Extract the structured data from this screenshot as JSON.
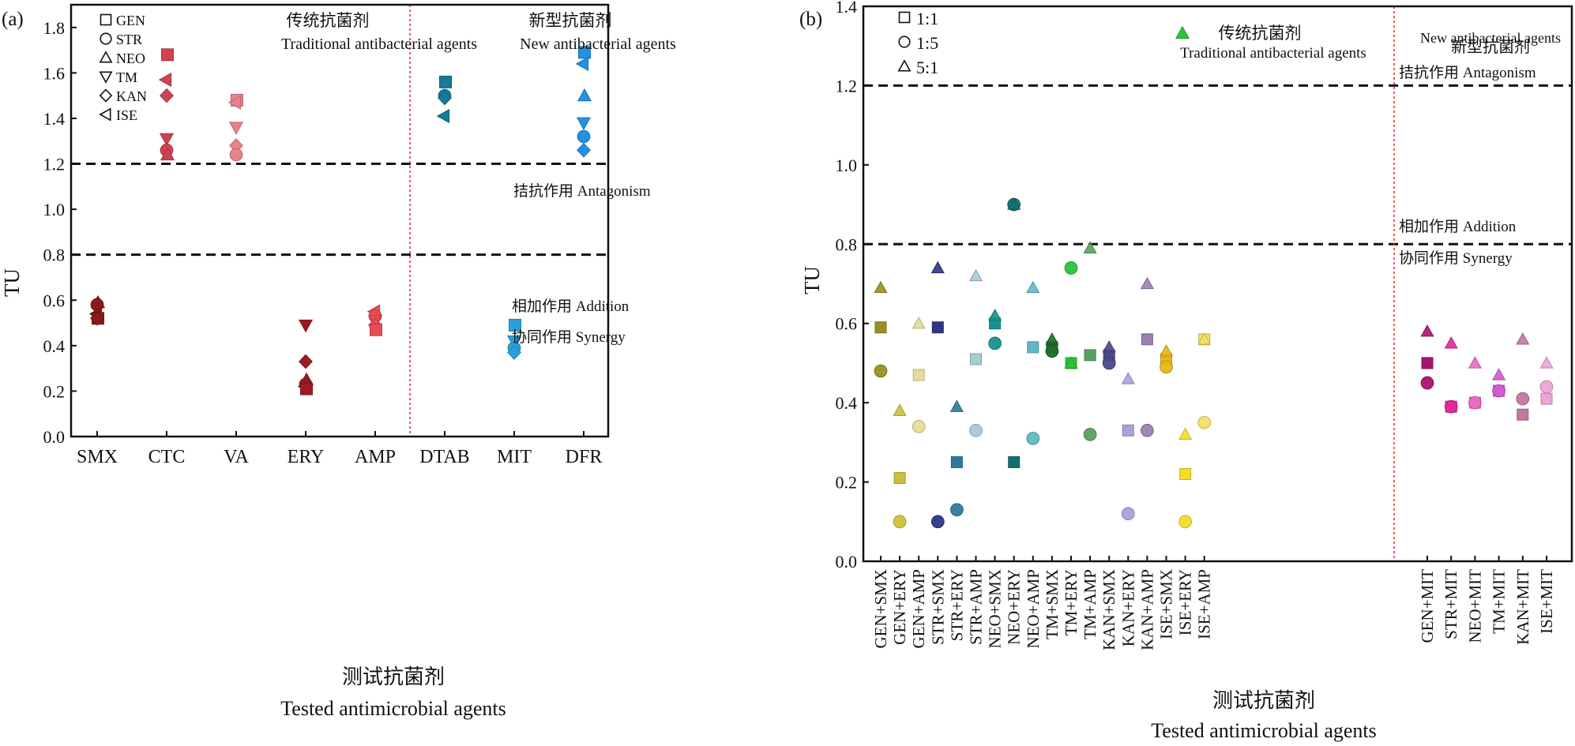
{
  "chart_data": [
    {
      "panel_label": "(a)",
      "type": "scatter",
      "ylabel": "TU",
      "xlabel_cn": "测试抗菌剂",
      "xlabel_en": "Tested antimicrobial agents",
      "ylim": [
        0,
        1.9
      ],
      "yticks": [
        "0.0",
        "0.2",
        "0.4",
        "0.6",
        "0.8",
        "1.0",
        "1.2",
        "1.4",
        "1.6",
        "1.8"
      ],
      "categories": [
        "SMX",
        "CTC",
        "VA",
        "ERY",
        "AMP",
        "DTAB",
        "MIT",
        "DFR"
      ],
      "legend": [
        {
          "marker": "square",
          "label": "GEN"
        },
        {
          "marker": "circle",
          "label": "STR"
        },
        {
          "marker": "triangle-up",
          "label": "NEO"
        },
        {
          "marker": "triangle-down",
          "label": "TM"
        },
        {
          "marker": "diamond",
          "label": "KAN"
        },
        {
          "marker": "triangle-left",
          "label": "ISE"
        }
      ],
      "group_labels": [
        {
          "cn": "传统抗菌剂",
          "en": "Traditional antibacterial agents"
        },
        {
          "cn": "新型抗菌剂",
          "en": "New antibacterial agents"
        }
      ],
      "hlines": [
        {
          "y": 1.2,
          "label": "拮抗作用 Antagonism"
        },
        {
          "y": 0.8,
          "label_above": "相加作用 Addition",
          "label_below": "协同作用 Synergy"
        }
      ],
      "divider_after_category": 4,
      "colors": {
        "SMX": "#8b1a1a",
        "CTC": "#cc4452",
        "VA": "#e8828c",
        "ERY": "#9b1b22",
        "AMP": "#e94b55",
        "DTAB": "#177a96",
        "MIT": "#2aa0d8",
        "DFR": "#2490e2"
      },
      "points": [
        {
          "category": "SMX",
          "marker": "triangle-up",
          "y": 0.59
        },
        {
          "category": "SMX",
          "marker": "circle",
          "y": 0.58
        },
        {
          "category": "SMX",
          "marker": "triangle-left",
          "y": 0.54
        },
        {
          "category": "SMX",
          "marker": "square",
          "y": 0.52
        },
        {
          "category": "SMX",
          "marker": "diamond",
          "y": 0.52
        },
        {
          "category": "CTC",
          "marker": "square",
          "y": 1.68
        },
        {
          "category": "CTC",
          "marker": "triangle-left",
          "y": 1.57
        },
        {
          "category": "CTC",
          "marker": "diamond",
          "y": 1.5
        },
        {
          "category": "CTC",
          "marker": "triangle-down",
          "y": 1.31
        },
        {
          "category": "CTC",
          "marker": "circle",
          "y": 1.26
        },
        {
          "category": "CTC",
          "marker": "triangle-up",
          "y": 1.24
        },
        {
          "category": "VA",
          "marker": "square",
          "y": 1.48
        },
        {
          "category": "VA",
          "marker": "triangle-left",
          "y": 1.47
        },
        {
          "category": "VA",
          "marker": "triangle-down",
          "y": 1.36
        },
        {
          "category": "VA",
          "marker": "diamond",
          "y": 1.28
        },
        {
          "category": "VA",
          "marker": "circle",
          "y": 1.24
        },
        {
          "category": "ERY",
          "marker": "triangle-down",
          "y": 0.49
        },
        {
          "category": "ERY",
          "marker": "diamond",
          "y": 0.33
        },
        {
          "category": "ERY",
          "marker": "triangle-up",
          "y": 0.25
        },
        {
          "category": "ERY",
          "marker": "circle",
          "y": 0.23
        },
        {
          "category": "ERY",
          "marker": "triangle-left",
          "y": 0.22
        },
        {
          "category": "ERY",
          "marker": "square",
          "y": 0.21
        },
        {
          "category": "AMP",
          "marker": "triangle-left",
          "y": 0.55
        },
        {
          "category": "AMP",
          "marker": "circle",
          "y": 0.53
        },
        {
          "category": "AMP",
          "marker": "triangle-down",
          "y": 0.51
        },
        {
          "category": "AMP",
          "marker": "diamond",
          "y": 0.49
        },
        {
          "category": "AMP",
          "marker": "square",
          "y": 0.47
        },
        {
          "category": "DTAB",
          "marker": "square",
          "y": 1.56
        },
        {
          "category": "DTAB",
          "marker": "circle",
          "y": 1.5
        },
        {
          "category": "DTAB",
          "marker": "diamond",
          "y": 1.49
        },
        {
          "category": "DTAB",
          "marker": "triangle-left",
          "y": 1.41
        },
        {
          "category": "MIT",
          "marker": "square",
          "y": 0.49
        },
        {
          "category": "MIT",
          "marker": "triangle-down",
          "y": 0.42
        },
        {
          "category": "MIT",
          "marker": "circle",
          "y": 0.39
        },
        {
          "category": "MIT",
          "marker": "diamond",
          "y": 0.37
        },
        {
          "category": "DFR",
          "marker": "square",
          "y": 1.69
        },
        {
          "category": "DFR",
          "marker": "triangle-left",
          "y": 1.64
        },
        {
          "category": "DFR",
          "marker": "triangle-up",
          "y": 1.5
        },
        {
          "category": "DFR",
          "marker": "triangle-down",
          "y": 1.38
        },
        {
          "category": "DFR",
          "marker": "circle",
          "y": 1.32
        },
        {
          "category": "DFR",
          "marker": "diamond",
          "y": 1.26
        }
      ]
    },
    {
      "panel_label": "(b)",
      "type": "scatter",
      "ylabel": "TU",
      "xlabel_cn": "测试抗菌剂",
      "xlabel_en": "Tested antimicrobial agents",
      "ylim": [
        0,
        1.4
      ],
      "yticks": [
        "0.0",
        "0.2",
        "0.4",
        "0.6",
        "0.8",
        "1.0",
        "1.2",
        "1.4"
      ],
      "categories": [
        "GEN+SMX",
        "GEN+ERY",
        "GEN+AMP",
        "STR+SMX",
        "STR+ERY",
        "STR+AMP",
        "NEO+SMX",
        "NEO+ERY",
        "NEO+AMP",
        "TM+SMX",
        "TM+ERY",
        "TM+AMP",
        "KAN+SMX",
        "KAN+ERY",
        "KAN+AMP",
        "ISE+SMX",
        "ISE+ERY",
        "ISE+AMP",
        "GEN+MIT",
        "STR+MIT",
        "NEO+MIT",
        "TM+MIT",
        "KAN+MIT",
        "ISE+MIT"
      ],
      "legend": [
        {
          "marker": "square",
          "label": "1:1"
        },
        {
          "marker": "circle",
          "label": "1:5"
        },
        {
          "marker": "triangle-up",
          "label": "5:1"
        }
      ],
      "group_labels": [
        {
          "cn": "传统抗菌剂",
          "en": "Traditional antibacterial agents"
        },
        {
          "cn": "新型抗菌剂",
          "en": "New antibacterial agents"
        }
      ],
      "hlines": [
        {
          "y": 1.2,
          "label": "拮抗作用 Antagonism"
        },
        {
          "y": 0.8,
          "label_above": "相加作用 Addition",
          "label_below": "协同作用 Synergy"
        }
      ],
      "divider_after_category": 17,
      "colors": [
        "#9a8f22",
        "#cdbf3c",
        "#e3dd98",
        "#2d3585",
        "#2f7a9b",
        "#a6cad7",
        "#16928e",
        "#127070",
        "#5fb9c4",
        "#1b6f2a",
        "#2bc33b",
        "#5aa062",
        "#4b4a8a",
        "#a7a3db",
        "#9a80b4",
        "#e8b61c",
        "#f2de29",
        "#f4df64",
        "#a8136d",
        "#e1289e",
        "#e96dc0",
        "#d45ad2",
        "#c4779e",
        "#eaa5d4"
      ],
      "series": [
        {
          "name": "1:1",
          "marker": "square",
          "values": [
            0.59,
            0.21,
            0.47,
            0.59,
            0.25,
            0.51,
            0.6,
            0.25,
            0.54,
            0.54,
            0.5,
            0.52,
            0.52,
            0.33,
            0.56,
            0.51,
            0.22,
            0.56,
            0.5,
            0.39,
            0.4,
            0.43,
            0.37,
            0.41
          ]
        },
        {
          "name": "1:5",
          "marker": "circle",
          "values": [
            0.48,
            0.1,
            0.34,
            0.1,
            0.13,
            0.33,
            0.55,
            0.9,
            0.31,
            0.53,
            0.74,
            0.32,
            0.5,
            0.12,
            0.33,
            0.49,
            0.1,
            0.35,
            0.45,
            0.39,
            0.4,
            0.43,
            0.41,
            0.44
          ]
        },
        {
          "name": "5:1",
          "marker": "triangle-up",
          "values": [
            0.69,
            0.38,
            0.6,
            0.74,
            0.39,
            0.72,
            0.62,
            0.9,
            0.69,
            0.56,
            0.5,
            0.79,
            0.54,
            0.46,
            0.7,
            0.53,
            0.32,
            0.56,
            0.58,
            0.55,
            0.5,
            0.47,
            0.56,
            0.5
          ]
        }
      ],
      "inline_marker_color": "#2bc33b"
    }
  ]
}
